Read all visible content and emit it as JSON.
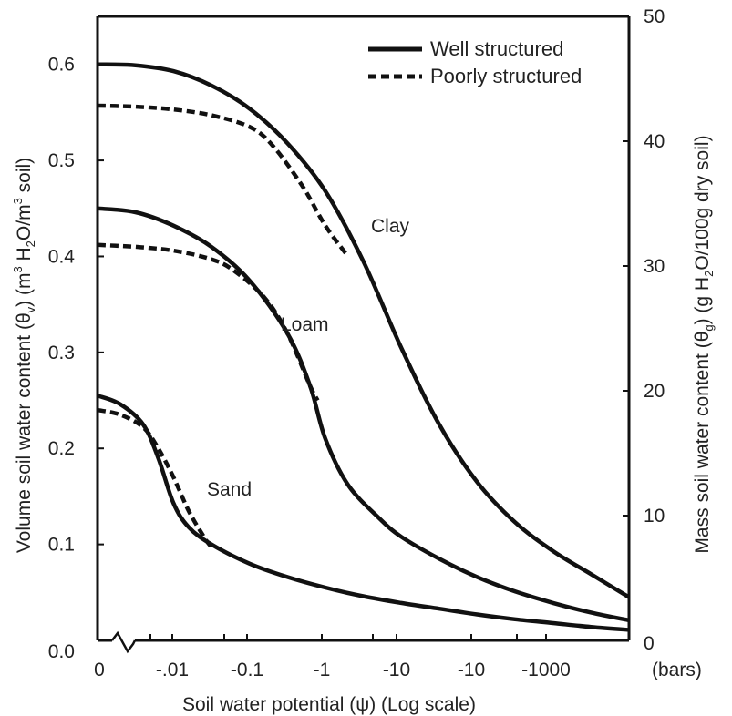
{
  "chart_data": {
    "type": "line",
    "xlabel": "Soil water potential (ψ) (Log scale)",
    "x_unit": "(bars)",
    "x_categories": [
      "0",
      "-.01",
      "-0.1",
      "-1",
      "-10",
      "-10",
      "-1000"
    ],
    "ylabel_left": {
      "prefix": "Volume soil water content (θ",
      "sub": "v",
      "middle": ") (m",
      "sup1": "3",
      "mid2": " H",
      "sub2": "2",
      "mid3": "O/m",
      "sup2": "3",
      "suffix": " soil)"
    },
    "ylabel_right": {
      "prefix": "Mass soil water content (θ",
      "sub": "g",
      "middle": ") (g H",
      "sub2": "2",
      "suffix": "O/100g dry soil)"
    },
    "ylim_left": [
      0.0,
      0.65
    ],
    "yticks_left": [
      "0.0",
      "0.1",
      "0.2",
      "0.3",
      "0.4",
      "0.5",
      "0.6"
    ],
    "ylim_right": [
      0,
      50
    ],
    "yticks_right": [
      "0",
      "10",
      "20",
      "30",
      "40",
      "50"
    ],
    "legend": {
      "placement": "top-right",
      "entries": [
        {
          "label": "Well structured",
          "style": "solid"
        },
        {
          "label": "Poorly structured",
          "style": "dashed"
        }
      ]
    },
    "curve_labels": [
      "Clay",
      "Loam",
      "Sand"
    ],
    "series": [
      {
        "soil": "Clay",
        "style": "solid",
        "points": [
          [
            0,
            0.6
          ],
          [
            0.5,
            0.599
          ],
          [
            1,
            0.593
          ],
          [
            1.5,
            0.578
          ],
          [
            2,
            0.554
          ],
          [
            2.5,
            0.518
          ],
          [
            3,
            0.468
          ],
          [
            3.5,
            0.395
          ],
          [
            4,
            0.305
          ],
          [
            4.5,
            0.225
          ],
          [
            5,
            0.165
          ],
          [
            5.5,
            0.123
          ],
          [
            6,
            0.093
          ],
          [
            6.5,
            0.069
          ],
          [
            7,
            0.045
          ]
        ]
      },
      {
        "soil": "Clay",
        "style": "dashed",
        "points": [
          [
            0,
            0.557
          ],
          [
            0.5,
            0.556
          ],
          [
            1,
            0.553
          ],
          [
            1.5,
            0.547
          ],
          [
            2,
            0.535
          ],
          [
            2.3,
            0.516
          ],
          [
            2.7,
            0.473
          ],
          [
            3,
            0.432
          ],
          [
            3.3,
            0.4
          ]
        ]
      },
      {
        "soil": "Loam",
        "style": "solid",
        "points": [
          [
            0,
            0.45
          ],
          [
            0.5,
            0.446
          ],
          [
            1,
            0.432
          ],
          [
            1.5,
            0.41
          ],
          [
            2,
            0.375
          ],
          [
            2.5,
            0.32
          ],
          [
            2.8,
            0.265
          ],
          [
            3,
            0.21
          ],
          [
            3.3,
            0.162
          ],
          [
            3.7,
            0.128
          ],
          [
            4,
            0.108
          ],
          [
            4.5,
            0.085
          ],
          [
            5,
            0.066
          ],
          [
            5.5,
            0.051
          ],
          [
            6,
            0.039
          ],
          [
            6.5,
            0.029
          ],
          [
            7,
            0.021
          ]
        ]
      },
      {
        "soil": "Loam",
        "style": "dashed",
        "points": [
          [
            0,
            0.412
          ],
          [
            0.5,
            0.41
          ],
          [
            1,
            0.406
          ],
          [
            1.5,
            0.397
          ],
          [
            1.8,
            0.385
          ],
          [
            2.2,
            0.357
          ],
          [
            2.5,
            0.32
          ],
          [
            2.8,
            0.265
          ],
          [
            2.9,
            0.25
          ]
        ]
      },
      {
        "soil": "Sand",
        "style": "solid",
        "points": [
          [
            0,
            0.255
          ],
          [
            0.3,
            0.246
          ],
          [
            0.6,
            0.225
          ],
          [
            0.8,
            0.19
          ],
          [
            1,
            0.143
          ],
          [
            1.2,
            0.118
          ],
          [
            1.5,
            0.1
          ],
          [
            2,
            0.08
          ],
          [
            2.5,
            0.066
          ],
          [
            3,
            0.055
          ],
          [
            3.5,
            0.046
          ],
          [
            4,
            0.039
          ],
          [
            4.5,
            0.033
          ],
          [
            5,
            0.027
          ],
          [
            5.5,
            0.022
          ],
          [
            6,
            0.018
          ],
          [
            6.5,
            0.014
          ],
          [
            7,
            0.011
          ]
        ]
      },
      {
        "soil": "Sand",
        "style": "dashed",
        "points": [
          [
            0,
            0.24
          ],
          [
            0.3,
            0.235
          ],
          [
            0.6,
            0.222
          ],
          [
            0.8,
            0.2
          ],
          [
            1,
            0.17
          ],
          [
            1.2,
            0.135
          ],
          [
            1.4,
            0.108
          ],
          [
            1.5,
            0.097
          ]
        ]
      }
    ]
  }
}
